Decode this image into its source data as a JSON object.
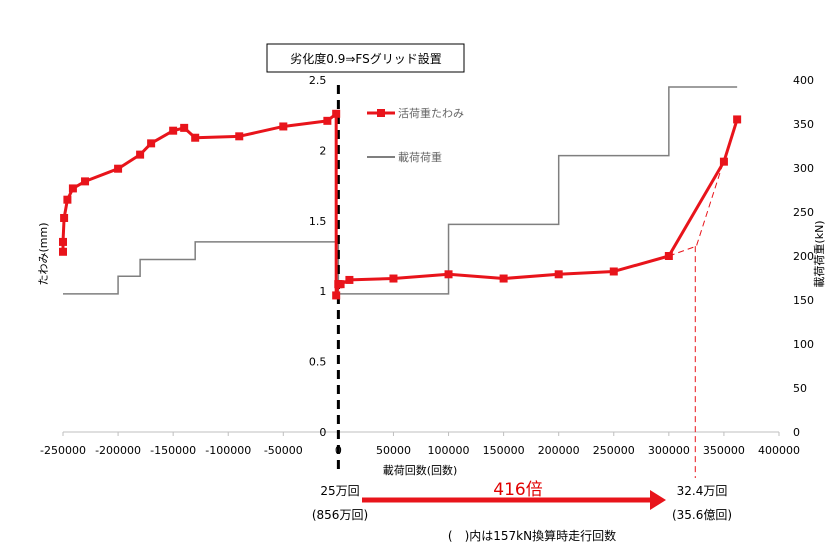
{
  "chart_data": {
    "type": "line",
    "title": "劣化度0.9⇒FSグリッド設置",
    "xlabel": "載荷回数(回数)",
    "ylabel_left": "たわみ(mm)",
    "ylabel_right": "載荷荷重(kN)",
    "xlim": [
      -250000,
      400000
    ],
    "ylim_left": [
      0,
      2.5
    ],
    "ylim_right": [
      0,
      400
    ],
    "x_ticks": [
      "-250000",
      "-200000",
      "-150000",
      "-100000",
      "-50000",
      "0",
      "50000",
      "100000",
      "150000",
      "200000",
      "250000",
      "300000",
      "350000",
      "400000"
    ],
    "y_left_ticks": [
      "0",
      "0.5",
      "1",
      "1.5",
      "2",
      "2.5"
    ],
    "y_right_ticks": [
      "0",
      "50",
      "100",
      "150",
      "200",
      "250",
      "300",
      "350",
      "400"
    ],
    "grid": false,
    "legend_position": "top-right",
    "series": [
      {
        "name": "活荷重たわみ",
        "axis": "left",
        "color": "#e8141b",
        "marker": "square",
        "x": [
          -250000,
          -250000,
          -249000,
          -246000,
          -241000,
          -230000,
          -200000,
          -180000,
          -170000,
          -150000,
          -140000,
          -130000,
          -90000,
          -50000,
          -10000,
          -2000,
          -2000,
          0,
          0,
          2000,
          10000,
          50000,
          100000,
          150000,
          200000,
          250000,
          300000,
          350000,
          362000
        ],
        "y": [
          1.28,
          1.35,
          1.52,
          1.65,
          1.73,
          1.78,
          1.87,
          1.97,
          2.05,
          2.14,
          2.16,
          2.09,
          2.1,
          2.17,
          2.21,
          2.26,
          0.97,
          1.05,
          1.05,
          1.05,
          1.08,
          1.09,
          1.12,
          1.09,
          1.12,
          1.14,
          1.25,
          1.92,
          2.22
        ]
      },
      {
        "name": "載荷荷重",
        "axis": "right",
        "color": "#7f7f7f",
        "step": true,
        "x": [
          -250000,
          -200000,
          -200000,
          -180000,
          -180000,
          -130000,
          -130000,
          0,
          0,
          100000,
          100000,
          200000,
          200000,
          300000,
          300000,
          362000
        ],
        "y": [
          157,
          157,
          177,
          177,
          196,
          196,
          216,
          216,
          157,
          157,
          236,
          236,
          314,
          314,
          392,
          392
        ]
      }
    ],
    "dashed_extension": {
      "color": "#e8141b",
      "x": [
        300000,
        325000,
        362000
      ],
      "y": [
        1.25,
        1.32,
        2.22
      ]
    }
  },
  "annotations": {
    "left_label_1": "25万回",
    "left_label_2": "(856万回)",
    "arrow_label": "416倍",
    "right_label_1": "32.4万回",
    "right_label_2": "(35.6億回)",
    "footnote": "(　)内は157kN換算時走行回数"
  }
}
